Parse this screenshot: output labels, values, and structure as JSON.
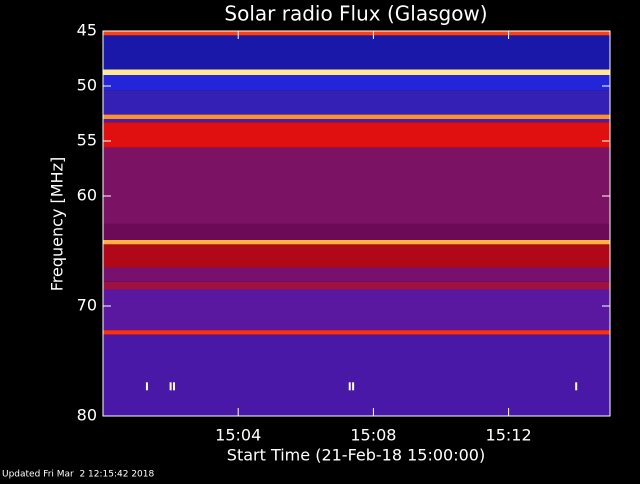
{
  "chart_data": {
    "type": "spectrogram",
    "title": "Solar radio Flux (Glasgow)",
    "ylabel": "Frequency [MHz]",
    "xlabel": "Start Time (21-Feb-18 15:00:00)",
    "footer": "Updated Fri Mar  2 12:15:42 2018",
    "ylim": [
      45,
      80
    ],
    "yticks": [
      45,
      50,
      55,
      60,
      70,
      80
    ],
    "xlim": [
      0,
      15
    ],
    "xticks": [
      {
        "value": 4,
        "label": "15:04"
      },
      {
        "value": 8,
        "label": "15:08"
      },
      {
        "value": 12,
        "label": "15:12"
      }
    ],
    "bands": [
      {
        "from": 45,
        "to": 45.4,
        "color": "#ff4010"
      },
      {
        "from": 45.4,
        "to": 48.5,
        "color": "#1a18a8"
      },
      {
        "from": 48.5,
        "to": 49.0,
        "color": "#ffe890"
      },
      {
        "from": 49.0,
        "to": 50.4,
        "color": "#2424d8"
      },
      {
        "from": 50.4,
        "to": 52.6,
        "color": "#3420b4"
      },
      {
        "from": 52.6,
        "to": 53.0,
        "color": "#ff9030"
      },
      {
        "from": 53.0,
        "to": 53.3,
        "color": "#4a20a0"
      },
      {
        "from": 53.3,
        "to": 55.6,
        "color": "#e01010"
      },
      {
        "from": 55.6,
        "to": 62.5,
        "color": "#7c1264"
      },
      {
        "from": 62.5,
        "to": 64.0,
        "color": "#6c0a58"
      },
      {
        "from": 64.0,
        "to": 64.4,
        "color": "#ffb040"
      },
      {
        "from": 64.4,
        "to": 66.5,
        "color": "#b00818"
      },
      {
        "from": 66.5,
        "to": 67.8,
        "color": "#781070"
      },
      {
        "from": 67.8,
        "to": 68.5,
        "color": "#a01040"
      },
      {
        "from": 68.5,
        "to": 72.2,
        "color": "#5a18a0"
      },
      {
        "from": 72.2,
        "to": 72.6,
        "color": "#ff3010"
      },
      {
        "from": 72.6,
        "to": 80,
        "color": "#4a18a6"
      }
    ],
    "bursts": {
      "color": "#ffffe0",
      "x": [
        1.3,
        2.0,
        2.1,
        7.3,
        7.4,
        14.0
      ],
      "y": [
        77.3,
        77.3,
        77.3,
        77.3,
        77.3,
        77.3
      ]
    }
  }
}
